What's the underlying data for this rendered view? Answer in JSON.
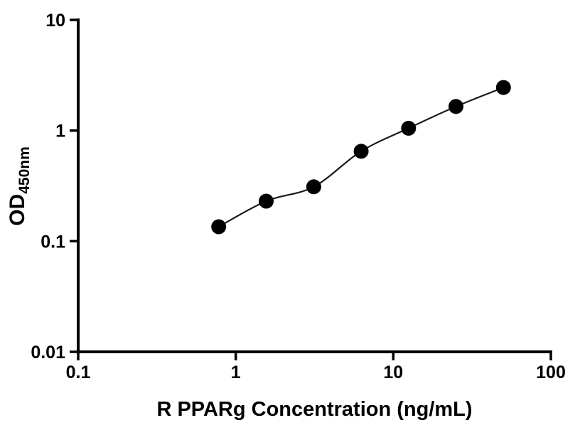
{
  "figure": {
    "kind": "ELISA standard curve",
    "background_color": "#ffffff",
    "axis_color": "#000000",
    "marker_color": "#000000",
    "line_color": "#1a1a1a"
  },
  "chart_data": {
    "type": "scatter",
    "title": "",
    "xlabel": "R PPARg Concentration (ng/mL)",
    "ylabel": "OD450nm",
    "ylabel_main": "OD",
    "ylabel_sub": "450nm",
    "xscale": "log",
    "yscale": "log",
    "xlim": [
      0.1,
      100
    ],
    "ylim": [
      0.01,
      10
    ],
    "x_tick_labels": [
      "0.1",
      "1",
      "10",
      "100"
    ],
    "x_tick_values": [
      0.1,
      1,
      10,
      100
    ],
    "y_tick_labels": [
      "0.01",
      "0.1",
      "1",
      "10"
    ],
    "y_tick_values": [
      0.01,
      0.1,
      1,
      10
    ],
    "grid": false,
    "legend": "none",
    "marker": "filled-circle",
    "fit_line": true,
    "x": [
      0.78,
      1.56,
      3.125,
      6.25,
      12.5,
      25,
      50
    ],
    "y": [
      0.135,
      0.23,
      0.31,
      0.65,
      1.05,
      1.65,
      2.45
    ]
  }
}
